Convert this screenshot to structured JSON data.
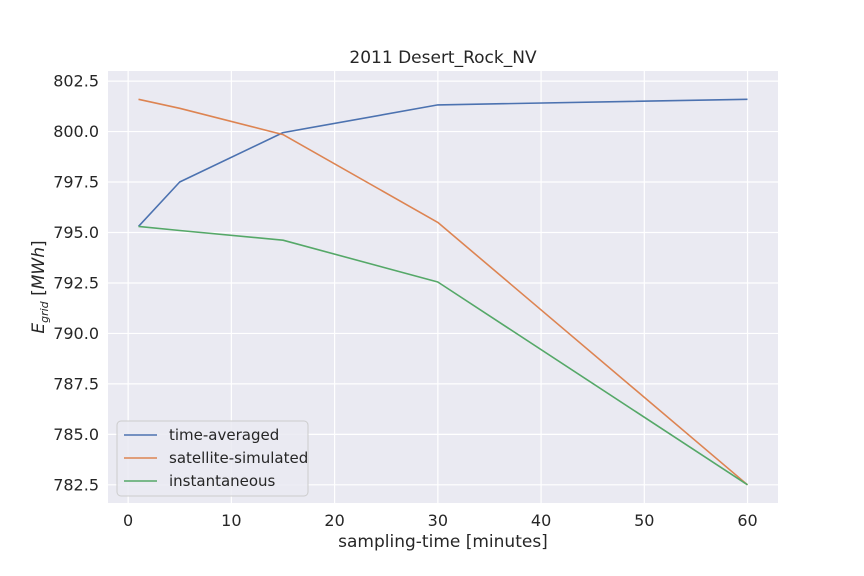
{
  "chart_data": {
    "type": "line",
    "title": "2011 Desert_Rock_NV",
    "xlabel": "sampling-time [minutes]",
    "ylabel_main": "E",
    "ylabel_sub": "grid",
    "ylabel_unit": " [MWh]",
    "xlim": [
      -1.95,
      62.95
    ],
    "ylim": [
      781.6,
      803.0
    ],
    "x_ticks": [
      0,
      10,
      20,
      30,
      40,
      50,
      60
    ],
    "x_tick_labels": [
      "0",
      "10",
      "20",
      "30",
      "40",
      "50",
      "60"
    ],
    "y_ticks": [
      782.5,
      785.0,
      787.5,
      790.0,
      792.5,
      795.0,
      797.5,
      800.0,
      802.5
    ],
    "y_tick_labels": [
      "782.5",
      "785.0",
      "787.5",
      "790.0",
      "792.5",
      "795.0",
      "797.5",
      "800.0",
      "802.5"
    ],
    "x": [
      1,
      5,
      15,
      30,
      60
    ],
    "series": [
      {
        "name": "time-averaged",
        "color": "#4c72b0",
        "values": [
          795.3,
          797.5,
          799.95,
          801.32,
          801.6
        ]
      },
      {
        "name": "satellite-simulated",
        "color": "#dd8452",
        "values": [
          801.6,
          801.15,
          799.85,
          795.5,
          782.5
        ]
      },
      {
        "name": "instantaneous",
        "color": "#55a868",
        "values": [
          795.3,
          795.1,
          794.62,
          792.55,
          782.5
        ]
      }
    ],
    "grid": true,
    "legend_position": "lower-left",
    "background_color": "#eaeaf2",
    "grid_color": "#ffffff"
  }
}
